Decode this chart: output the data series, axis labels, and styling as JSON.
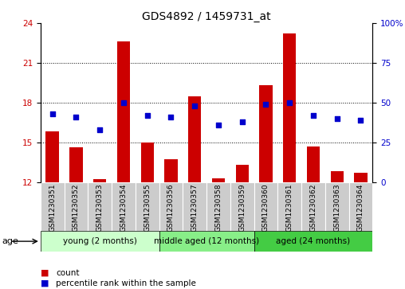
{
  "title": "GDS4892 / 1459731_at",
  "samples": [
    "GSM1230351",
    "GSM1230352",
    "GSM1230353",
    "GSM1230354",
    "GSM1230355",
    "GSM1230356",
    "GSM1230357",
    "GSM1230358",
    "GSM1230359",
    "GSM1230360",
    "GSM1230361",
    "GSM1230362",
    "GSM1230363",
    "GSM1230364"
  ],
  "counts": [
    15.8,
    14.6,
    12.2,
    22.6,
    15.0,
    13.7,
    18.5,
    12.3,
    13.3,
    19.3,
    23.2,
    14.7,
    12.8,
    12.7
  ],
  "percentile_ranks": [
    43,
    41,
    33,
    50,
    42,
    41,
    48,
    36,
    38,
    49,
    50,
    42,
    40,
    39
  ],
  "ylim_left": [
    12,
    24
  ],
  "ylim_right": [
    0,
    100
  ],
  "yticks_left": [
    12,
    15,
    18,
    21,
    24
  ],
  "yticks_right": [
    0,
    25,
    50,
    75,
    100
  ],
  "bar_color": "#cc0000",
  "dot_color": "#0000cc",
  "bar_bottom": 12,
  "groups": [
    {
      "label": "young (2 months)",
      "start": 0,
      "end": 5
    },
    {
      "label": "middle aged (12 months)",
      "start": 5,
      "end": 9
    },
    {
      "label": "aged (24 months)",
      "start": 9,
      "end": 14
    }
  ],
  "group_colors": [
    "#ccffcc",
    "#88ee88",
    "#44cc44"
  ],
  "sample_bg_color": "#cccccc",
  "title_fontsize": 10,
  "tick_label_fontsize": 6.5,
  "axis_tick_fontsize": 7.5,
  "legend_fontsize": 7.5,
  "group_fontsize": 7.5
}
